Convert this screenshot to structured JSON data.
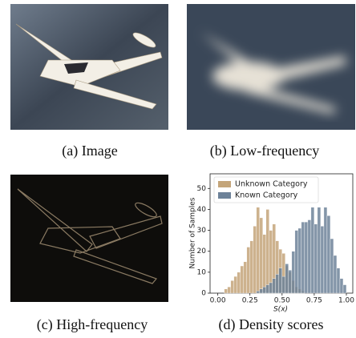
{
  "captions": [
    "(a) Image",
    "(b) Low-frequency",
    "(c) High-frequency",
    "(d) Density scores"
  ],
  "chart_data": {
    "type": "histogram",
    "xlabel": "S(x)",
    "ylabel": "Number of Samples",
    "bins": [
      0.05,
      0.075,
      0.1,
      0.125,
      0.15,
      0.175,
      0.2,
      0.225,
      0.25,
      0.275,
      0.3,
      0.325,
      0.35,
      0.375,
      0.4,
      0.425,
      0.45,
      0.475,
      0.5,
      0.525,
      0.55,
      0.575,
      0.6,
      0.625,
      0.65,
      0.675,
      0.7,
      0.725,
      0.75,
      0.775,
      0.8,
      0.825,
      0.85,
      0.875,
      0.9,
      0.925,
      0.95,
      0.975,
      1.0
    ],
    "series": [
      {
        "name": "Unknown Category",
        "color": "#c4a57a",
        "values": [
          2,
          3,
          6,
          8,
          10,
          13,
          15,
          22,
          25,
          32,
          41,
          36,
          28,
          40,
          30,
          33,
          25,
          21,
          19,
          13,
          10,
          6,
          3,
          2,
          1,
          0,
          0,
          0,
          0,
          0,
          0,
          0,
          0,
          0,
          0,
          0,
          0,
          0
        ]
      },
      {
        "name": "Known Category",
        "color": "#6d8299",
        "values": [
          0,
          0,
          0,
          0,
          0,
          0,
          0,
          0,
          0,
          0,
          1,
          2,
          3,
          4,
          5,
          7,
          9,
          12,
          8,
          14,
          11,
          20,
          30,
          31,
          34,
          34,
          35,
          41,
          33,
          41,
          32,
          41,
          37,
          26,
          18,
          12,
          7,
          4
        ]
      }
    ],
    "xlim": [
      -0.06,
      1.05
    ],
    "ylim": [
      0,
      57
    ],
    "xticks": [
      {
        "value": 0,
        "label": "0.00"
      },
      {
        "value": 0.25,
        "label": "0.25"
      },
      {
        "value": 0.5,
        "label": "0.50"
      },
      {
        "value": 0.75,
        "label": "0.75"
      },
      {
        "value": 1,
        "label": "1.00"
      }
    ],
    "yticks": [
      0,
      10,
      20,
      30,
      40,
      50
    ],
    "legend": "upper left"
  }
}
